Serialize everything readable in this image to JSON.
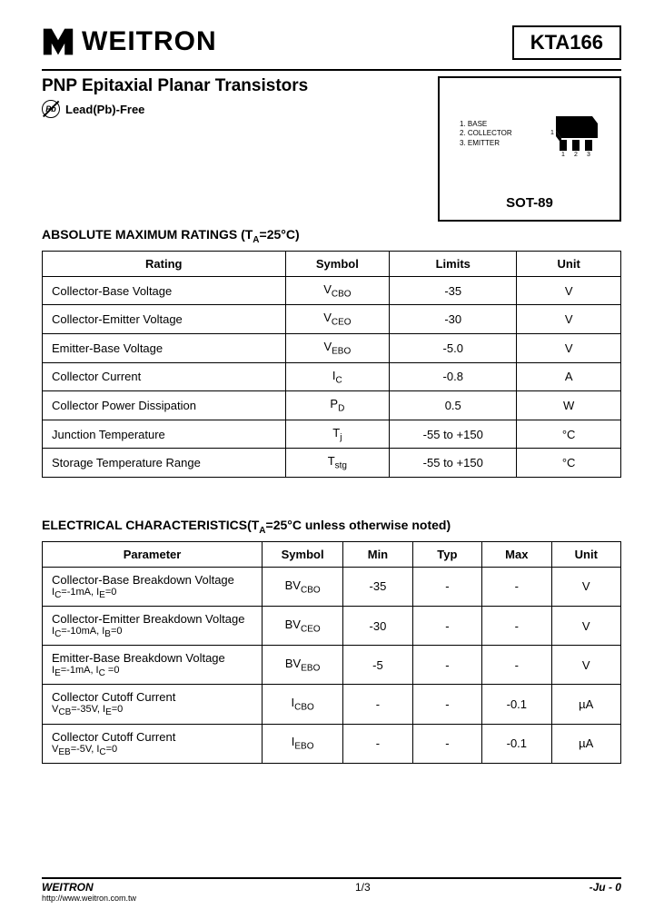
{
  "header": {
    "brand": "WEITRON",
    "part_number": "KTA166"
  },
  "title": {
    "heading": "PNP Epitaxial Planar Transistors",
    "pb_label": "Lead(Pb)-Free",
    "pb_icon_text": "Pb"
  },
  "package": {
    "pins": [
      "1. BASE",
      "2. COLLECTOR",
      "3. EMITTER"
    ],
    "pin_num": [
      "1",
      "2",
      "3"
    ],
    "name": "SOT-89"
  },
  "sections": {
    "abs_title": "ABSOLUTE MAXIMUM RATINGS (T",
    "abs_title_sub": "A",
    "abs_title_tail": "=25°C)",
    "elec_title": "ELECTRICAL CHARACTERISTICS(T",
    "elec_title_sub": "A",
    "elec_title_tail": "=25°C unless otherwise noted)"
  },
  "abs_table": {
    "columns": [
      "Rating",
      "Symbol",
      "Limits",
      "Unit"
    ],
    "col_widths": [
      "42%",
      "18%",
      "22%",
      "18%"
    ],
    "rows": [
      {
        "rating": "Collector-Base Voltage",
        "symbol": "V",
        "symbol_sub": "CBO",
        "limits": "-35",
        "unit": "V"
      },
      {
        "rating": "Collector-Emitter Voltage",
        "symbol": "V",
        "symbol_sub": "CEO",
        "limits": "-30",
        "unit": "V"
      },
      {
        "rating": "Emitter-Base Voltage",
        "symbol": "V",
        "symbol_sub": "EBO",
        "limits": "-5.0",
        "unit": "V"
      },
      {
        "rating": "Collector Current",
        "symbol": "I",
        "symbol_sub": "C",
        "limits": "-0.8",
        "unit": "A"
      },
      {
        "rating": "Collector Power Dissipation",
        "symbol": "P",
        "symbol_sub": "D",
        "limits": "0.5",
        "unit": "W"
      },
      {
        "rating": "Junction Temperature",
        "symbol": "T",
        "symbol_sub": "j",
        "limits": "-55 to +150",
        "unit": "°C"
      },
      {
        "rating": "Storage Temperature Range",
        "symbol": "T",
        "symbol_sub": "stg",
        "limits": "-55 to +150",
        "unit": "°C"
      }
    ]
  },
  "elec_table": {
    "columns": [
      "Parameter",
      "Symbol",
      "Min",
      "Typ",
      "Max",
      "Unit"
    ],
    "col_widths": [
      "38%",
      "14%",
      "12%",
      "12%",
      "12%",
      "12%"
    ],
    "rows": [
      {
        "param": "Collector-Base Breakdown Voltage",
        "cond": "I_C=-1mA, I_E=0",
        "symbol": "BV",
        "symbol_sub": "CBO",
        "min": "-35",
        "typ": "-",
        "max": "-",
        "unit": "V"
      },
      {
        "param": "Collector-Emitter Breakdown Voltage",
        "cond": "I_C=-10mA, I_B=0",
        "symbol": "BV",
        "symbol_sub": "CEO",
        "min": "-30",
        "typ": "-",
        "max": "-",
        "unit": "V"
      },
      {
        "param": "Emitter-Base Breakdown Voltage",
        "cond": "I_E=-1mA, I_C =0",
        "symbol": "BV",
        "symbol_sub": "EBO",
        "min": "-5",
        "typ": "-",
        "max": "-",
        "unit": "V"
      },
      {
        "param": "Collector Cutoff Current",
        "cond": "V_CB=-35V, I_E=0",
        "symbol": "I",
        "symbol_sub": "CBO",
        "min": "-",
        "typ": "-",
        "max": "-0.1",
        "unit": "µA"
      },
      {
        "param": "Collector Cutoff Current",
        "cond": "V_EB=-5V, I_C=0",
        "symbol": "I",
        "symbol_sub": "EBO",
        "min": "-",
        "typ": "-",
        "max": "-0.1",
        "unit": "µA"
      }
    ]
  },
  "footer": {
    "brand": "WEITRON",
    "url": "http://www.weitron.com.tw",
    "page": "1/3",
    "date": "-Ju  -  0"
  },
  "colors": {
    "text": "#000000",
    "background": "#ffffff"
  }
}
